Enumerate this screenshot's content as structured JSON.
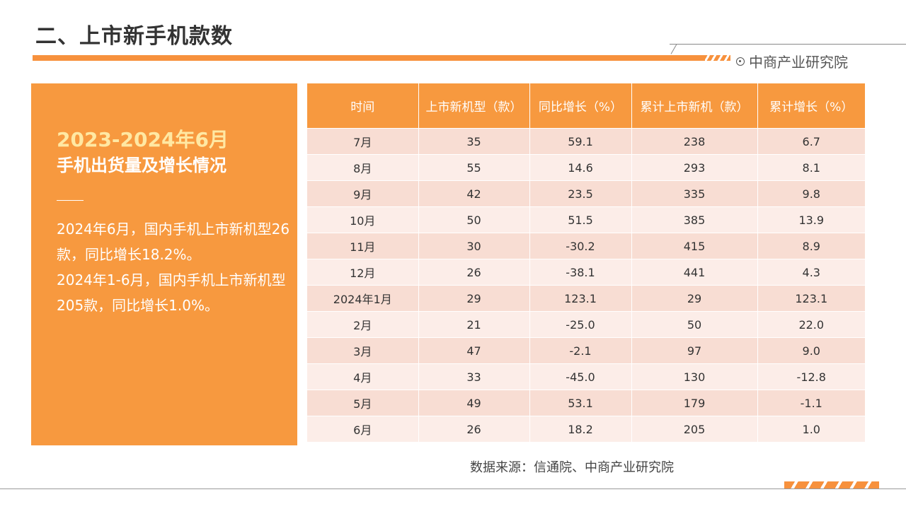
{
  "page": {
    "title": "二、上市新手机款数",
    "brand": "中商产业研究院",
    "accent_color": "#F7993F",
    "brand_icon": "circle-dot-icon"
  },
  "panel": {
    "year_title": "2023-2024年6月",
    "subtitle": "手机出货量及增长情况",
    "paragraph1": "2024年6月，国内手机上市新机型26款，同比增长18.2%。",
    "paragraph2": "2024年1-6月，国内手机上市新机型205款，同比增长1.0%。"
  },
  "table": {
    "headers": [
      "时间",
      "上市新机型（款）",
      "同比增长（%）",
      "累计上市新机（款）",
      "累计增长（%）"
    ],
    "rows": [
      [
        "7月",
        "35",
        "59.1",
        "238",
        "6.7"
      ],
      [
        "8月",
        "55",
        "14.6",
        "293",
        "8.1"
      ],
      [
        "9月",
        "42",
        "23.5",
        "335",
        "9.8"
      ],
      [
        "10月",
        "50",
        "51.5",
        "385",
        "13.9"
      ],
      [
        "11月",
        "30",
        "-30.2",
        "415",
        "8.9"
      ],
      [
        "12月",
        "26",
        "-38.1",
        "441",
        "4.3"
      ],
      [
        "2024年1月",
        "29",
        "123.1",
        "29",
        "123.1"
      ],
      [
        "2月",
        "21",
        "-25.0",
        "50",
        "22.0"
      ],
      [
        "3月",
        "47",
        "-2.1",
        "97",
        "9.0"
      ],
      [
        "4月",
        "33",
        "-45.0",
        "130",
        "-12.8"
      ],
      [
        "5月",
        "49",
        "53.1",
        "179",
        "-1.1"
      ],
      [
        "6月",
        "26",
        "18.2",
        "205",
        "1.0"
      ]
    ]
  },
  "source": "数据来源：信通院、中商产业研究院"
}
